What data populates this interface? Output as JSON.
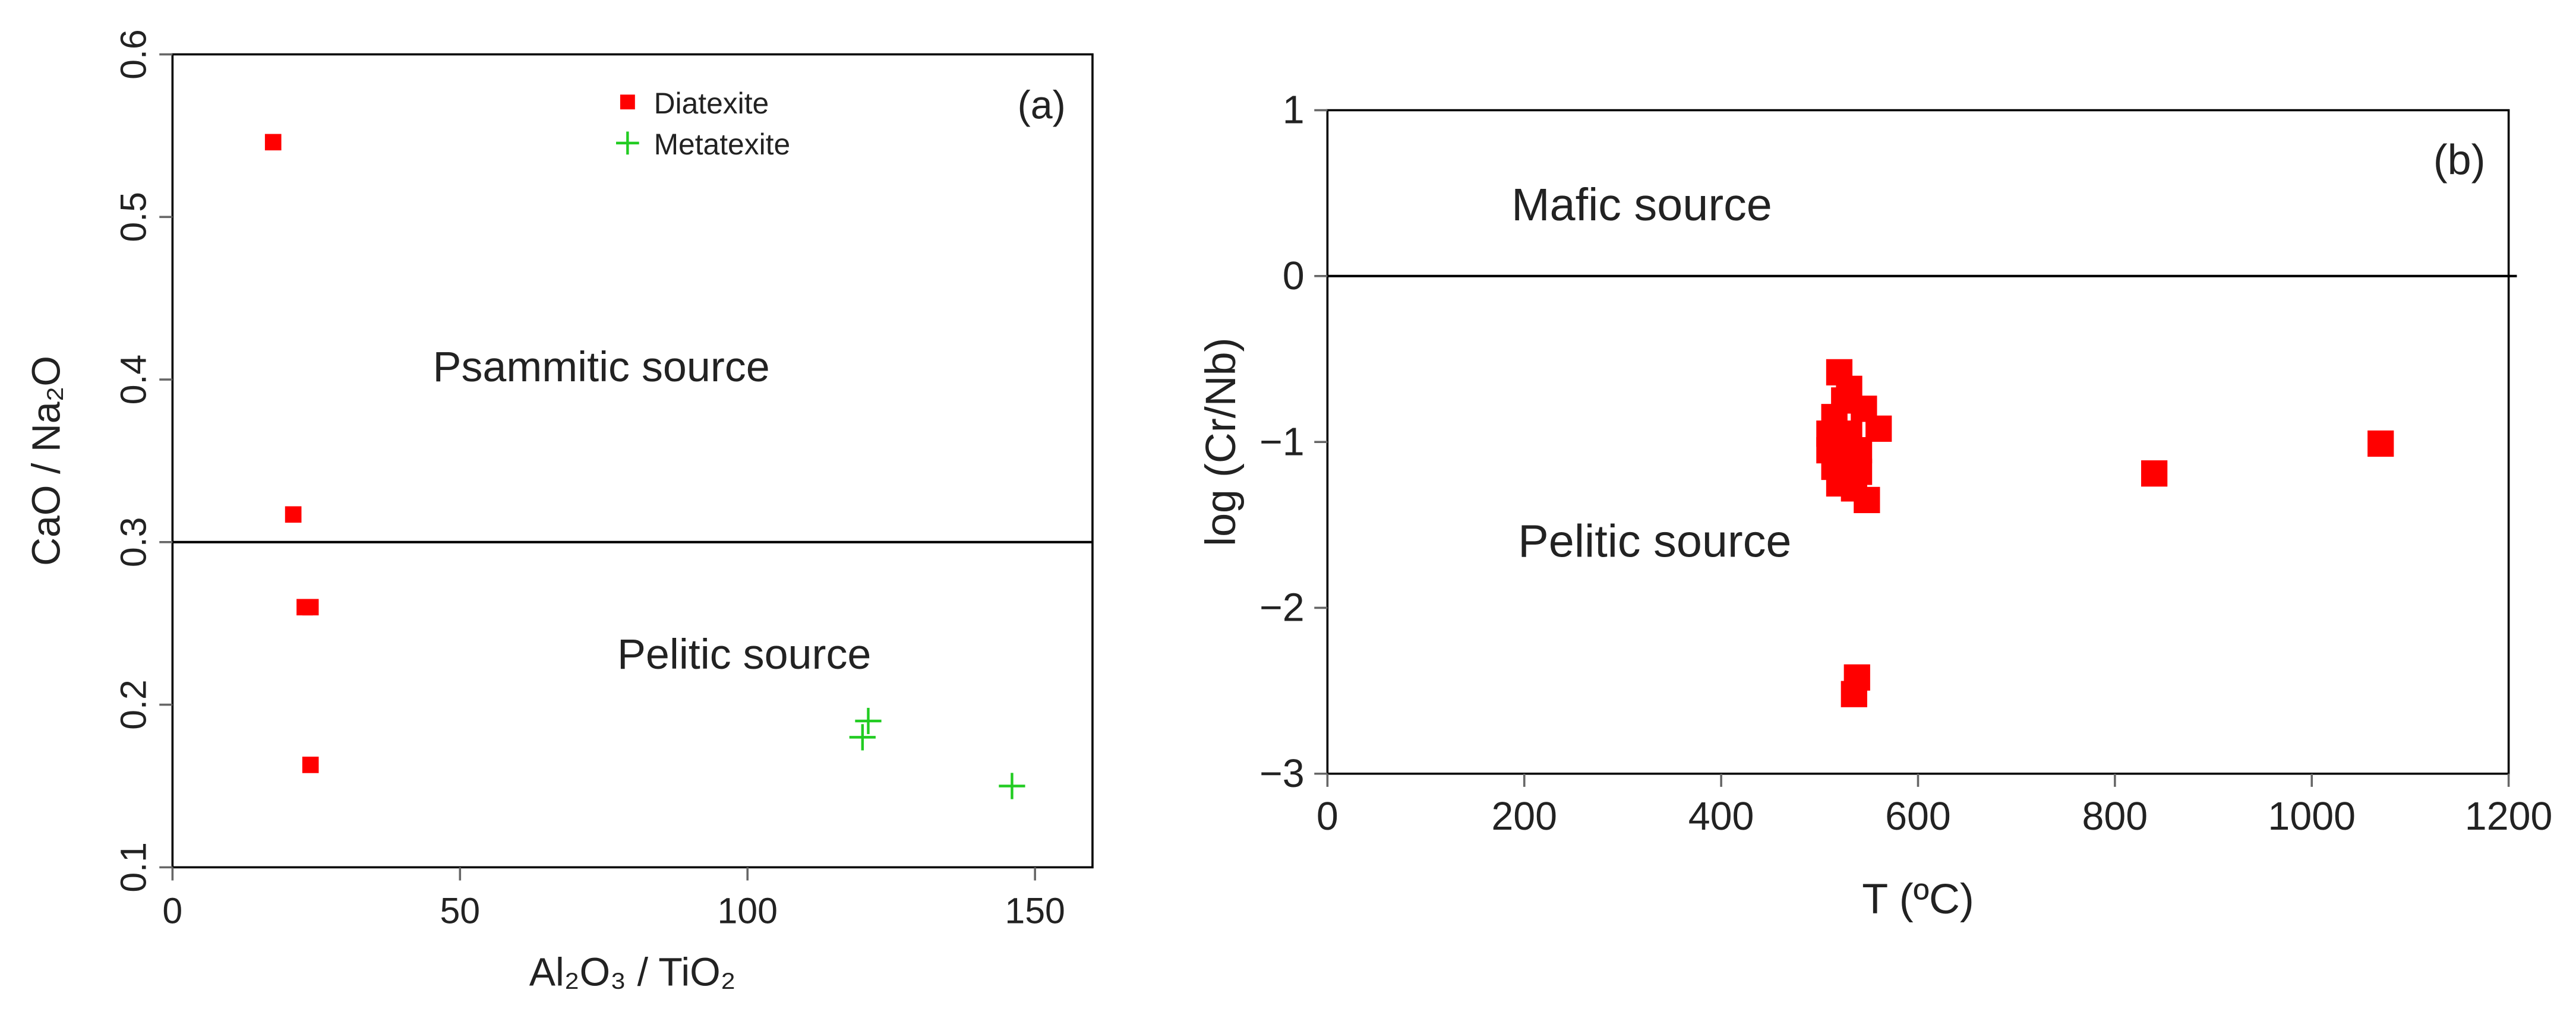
{
  "chart_data": [
    {
      "type": "scatter",
      "label": "(a)",
      "xlabel": "Al₂O₃ / TiO₂",
      "ylabel": "CaO / Na₂O",
      "xlim": [
        0,
        160
      ],
      "ylim": [
        0.1,
        0.6
      ],
      "xticks": [
        0,
        50,
        100,
        150
      ],
      "yticks": [
        0.1,
        0.2,
        0.3,
        0.4,
        0.5,
        0.6
      ],
      "hlines": [
        0.3
      ],
      "legend": "top",
      "annotations": [
        "Psammitic source",
        "Pelitic source"
      ],
      "series": [
        {
          "name": "Diatexite",
          "color": "#ff0000",
          "marker": "square",
          "x": [
            17.5,
            21,
            23,
            24,
            24
          ],
          "values": [
            0.546,
            0.317,
            0.26,
            0.26,
            0.163
          ]
        },
        {
          "name": "Metatexite",
          "color": "#22cc22",
          "marker": "plus",
          "x": [
            120,
            121,
            146
          ],
          "values": [
            0.18,
            0.19,
            0.15
          ]
        }
      ]
    },
    {
      "type": "scatter",
      "label": "(b)",
      "xlabel": "T (ºC)",
      "ylabel": "log (Cr/Nb)",
      "xlim": [
        0,
        1200
      ],
      "ylim": [
        -3,
        1
      ],
      "xticks": [
        0,
        200,
        400,
        600,
        800,
        1000,
        1200
      ],
      "yticks": [
        {
          "value": -3,
          "label": "−3"
        },
        {
          "value": -2,
          "label": "−2"
        },
        {
          "value": -1,
          "label": "−1"
        },
        0,
        1
      ],
      "hlines": [
        0
      ],
      "annotations": [
        "Mafic source",
        "Pelitic source"
      ],
      "series": [
        {
          "name": null,
          "color": "#ff0000",
          "marker": "square",
          "x": [
            520,
            530,
            525,
            545,
            515,
            560,
            510,
            530,
            510,
            540,
            525,
            515,
            540,
            520,
            535,
            548,
            538,
            535,
            840,
            1070
          ],
          "values": [
            -0.58,
            -0.68,
            -0.75,
            -0.8,
            -0.85,
            -0.92,
            -0.95,
            -0.95,
            -1.05,
            -1.05,
            -1.1,
            -1.15,
            -1.18,
            -1.25,
            -1.28,
            -1.35,
            -2.42,
            -2.52,
            -1.19,
            -1.01
          ]
        }
      ]
    }
  ]
}
